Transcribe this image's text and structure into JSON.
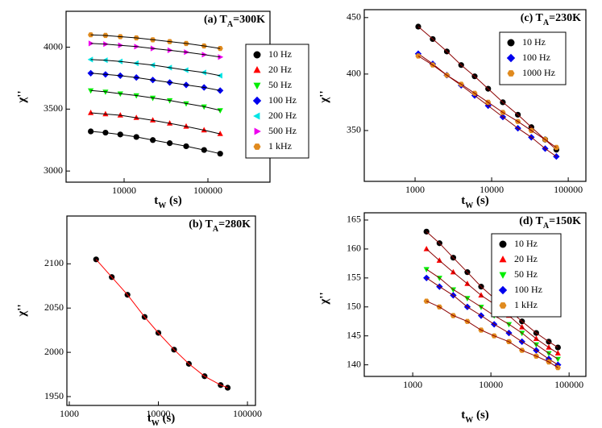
{
  "chart_data": [
    {
      "type": "scatter",
      "title": [
        "(a) T",
        "A",
        "=300K"
      ],
      "x_label": [
        "t",
        "W",
        " (s)"
      ],
      "y_label": "χ''",
      "xscale": "log",
      "xlim": [
        2030,
        550000
      ],
      "xticks": [
        10000,
        100000
      ],
      "ylim": [
        2910,
        4290
      ],
      "yticks": [
        3000,
        3500,
        4000
      ],
      "fit_color": "#000000",
      "legend": "upper right",
      "x": [
        4000,
        6000,
        9000,
        14000,
        22000,
        35000,
        55000,
        90000,
        140000
      ],
      "series": [
        {
          "name": "10 Hz",
          "color": "#000000",
          "marker": "circle",
          "values": [
            3320,
            3310,
            3295,
            3275,
            3250,
            3225,
            3200,
            3170,
            3140
          ]
        },
        {
          "name": "20 Hz",
          "color": "#ff0000",
          "marker": "triangle-up",
          "values": [
            3470,
            3460,
            3450,
            3430,
            3410,
            3385,
            3360,
            3330,
            3300
          ]
        },
        {
          "name": "50 Hz",
          "color": "#00ee00",
          "marker": "triangle-down",
          "values": [
            3650,
            3640,
            3625,
            3610,
            3590,
            3570,
            3545,
            3520,
            3490
          ]
        },
        {
          "name": "100 Hz",
          "color": "#0000ee",
          "marker": "diamond",
          "values": [
            3790,
            3780,
            3770,
            3755,
            3735,
            3715,
            3695,
            3675,
            3650
          ]
        },
        {
          "name": "200 Hz",
          "color": "#00e5e5",
          "marker": "triangle-left",
          "values": [
            3900,
            3895,
            3885,
            3870,
            3855,
            3835,
            3815,
            3795,
            3770
          ]
        },
        {
          "name": "500 Hz",
          "color": "#ee00ee",
          "marker": "triangle-right",
          "values": [
            4030,
            4025,
            4015,
            4005,
            3990,
            3975,
            3960,
            3940,
            3920
          ]
        },
        {
          "name": "1 kHz",
          "color": "#e08a1e",
          "marker": "hexagon",
          "values": [
            4100,
            4095,
            4085,
            4075,
            4060,
            4045,
            4030,
            4010,
            3990
          ]
        }
      ]
    },
    {
      "type": "scatter",
      "title": [
        "(b) T",
        "A",
        "=280K"
      ],
      "x_label": [
        "t",
        "W",
        " (s)"
      ],
      "y_label": "χ''",
      "xscale": "log",
      "xlim": [
        940,
        123000
      ],
      "xticks": [
        1000,
        10000,
        100000
      ],
      "ylim": [
        1940,
        2154
      ],
      "yticks": [
        1950,
        2000,
        2050,
        2100
      ],
      "fit_color": "#ff0000",
      "x": [
        2000,
        3000,
        4500,
        7000,
        10000,
        15000,
        22000,
        33000,
        50000,
        60000
      ],
      "series": [
        {
          "color": "#000000",
          "marker": "circle",
          "values": [
            2105,
            2085,
            2065,
            2040,
            2022,
            2003,
            1987,
            1973,
            1963,
            1960
          ]
        }
      ]
    },
    {
      "type": "scatter",
      "title": [
        "(c) T",
        "A",
        "=230K"
      ],
      "x_label": [
        "t",
        "W",
        " (s)"
      ],
      "y_label": "χ''",
      "xscale": "log",
      "xlim": [
        217,
        170000
      ],
      "xticks": [
        1000,
        10000,
        100000
      ],
      "ylim": [
        305,
        457
      ],
      "yticks": [
        350,
        400,
        450
      ],
      "fit_color": "#8b0000",
      "legend": "upper right",
      "x": [
        1100,
        1700,
        2600,
        4000,
        6000,
        9000,
        14000,
        22000,
        33000,
        50000,
        70000
      ],
      "series": [
        {
          "name": "10 Hz",
          "color": "#000000",
          "marker": "circle",
          "values": [
            442,
            431,
            420,
            408,
            398,
            387,
            375,
            364,
            353,
            342,
            333
          ]
        },
        {
          "name": "100 Hz",
          "color": "#0000ee",
          "marker": "diamond",
          "values": [
            418,
            409,
            399,
            390,
            381,
            372,
            362,
            352,
            344,
            334,
            327
          ]
        },
        {
          "name": "1000 Hz",
          "color": "#e08a1e",
          "marker": "hexagon",
          "values": [
            416,
            408,
            399,
            391,
            383,
            375,
            366,
            358,
            350,
            342,
            335
          ]
        }
      ]
    },
    {
      "type": "scatter",
      "title": [
        "(d) T",
        "A",
        "=150K"
      ],
      "x_label": [
        "t",
        "W",
        " (s)"
      ],
      "y_label": "χ''",
      "xscale": "log",
      "xlim": [
        240,
        164000
      ],
      "xticks": [
        1000,
        10000,
        100000
      ],
      "ylim": [
        138,
        166.25
      ],
      "yticks": [
        140,
        145,
        150,
        155,
        160,
        165
      ],
      "fit_color": "#8b0000",
      "legend": "upper right",
      "x": [
        1500,
        2200,
        3300,
        5000,
        7500,
        11000,
        17000,
        25000,
        38000,
        55000,
        72000
      ],
      "series": [
        {
          "name": "10 Hz",
          "color": "#000000",
          "marker": "circle",
          "values": [
            163,
            161,
            158.5,
            156,
            153.5,
            151.5,
            149.5,
            147.5,
            145.5,
            144,
            143
          ]
        },
        {
          "name": "20 Hz",
          "color": "#ff0000",
          "marker": "triangle-up",
          "values": [
            160,
            158,
            156,
            154,
            152,
            150.5,
            148.5,
            146.5,
            144.5,
            143,
            142
          ]
        },
        {
          "name": "50 Hz",
          "color": "#00ee00",
          "marker": "triangle-down",
          "values": [
            156.5,
            155,
            153,
            151.5,
            150,
            148.5,
            147,
            145.5,
            143.5,
            142,
            141
          ]
        },
        {
          "name": "100 Hz",
          "color": "#0000ee",
          "marker": "diamond",
          "values": [
            155,
            153.5,
            152,
            150,
            148.5,
            147,
            145.5,
            144,
            142.5,
            141,
            140
          ]
        },
        {
          "name": "1 kHz",
          "color": "#e08a1e",
          "marker": "hexagon",
          "values": [
            151,
            150,
            148.5,
            147.5,
            146,
            145,
            144,
            142.5,
            141.5,
            140.5,
            139.5
          ]
        }
      ]
    }
  ]
}
